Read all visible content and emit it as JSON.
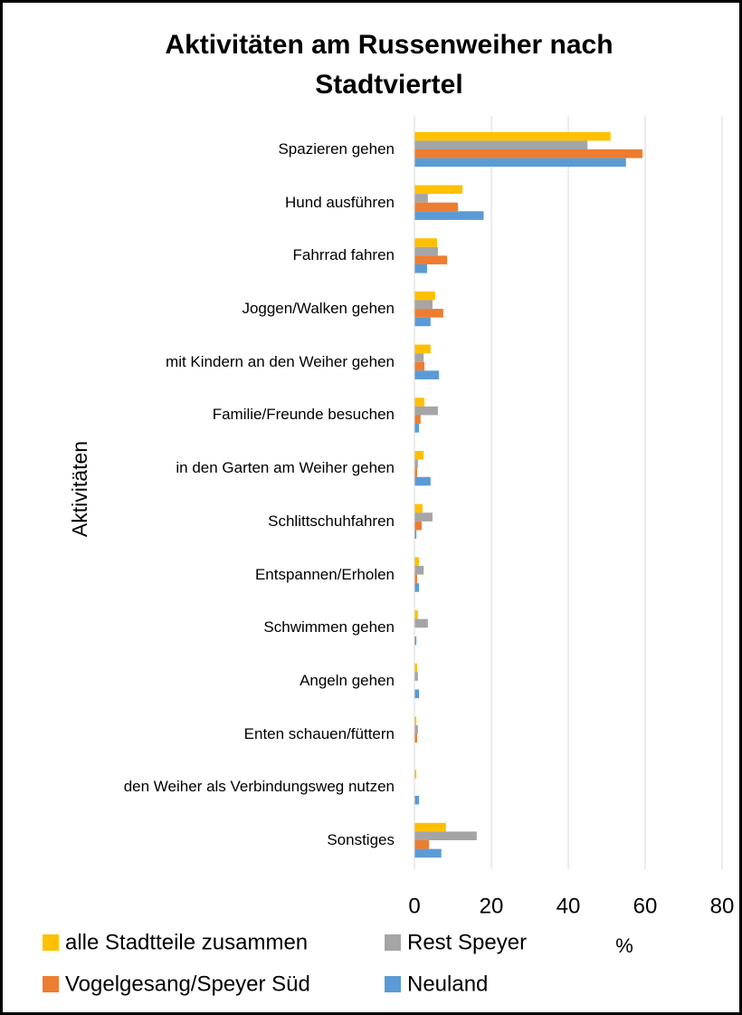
{
  "chart_data": {
    "type": "bar",
    "orientation": "horizontal",
    "title": "Aktivitäten am Russenweiher nach Stadtviertel",
    "y_label": "Aktivitäten",
    "x_label": "%",
    "categories": [
      "Spazieren gehen",
      "Hund ausführen",
      "Fahrrad fahren",
      "Joggen/Walken gehen",
      "mit Kindern an den Weiher gehen",
      "Familie/Freunde besuchen",
      "in den Garten am Weiher gehen",
      "Schlittschuhfahren",
      "Entspannen/Erholen",
      "Schwimmen gehen",
      "Angeln gehen",
      "Enten schauen/füttern",
      "den Weiher als Verbindungsweg nutzen",
      "Sonstiges"
    ],
    "series": [
      {
        "name": "alle Stadtteile zusammen",
        "color": "#ffc000",
        "values": [
          51,
          12.5,
          5.9,
          5.4,
          4.2,
          2.6,
          2.4,
          2.1,
          1.2,
          0.9,
          0.7,
          0.5,
          0.5,
          8.2
        ]
      },
      {
        "name": "Rest Speyer",
        "color": "#a5a5a5",
        "values": [
          45,
          3.5,
          6.1,
          4.7,
          2.4,
          6.1,
          0.9,
          4.7,
          2.4,
          3.5,
          0.9,
          0.9,
          0,
          16.2
        ]
      },
      {
        "name": "Vogelgesang/Speyer Süd",
        "color": "#ed7d31",
        "values": [
          59.3,
          11.3,
          8.5,
          7.5,
          2.6,
          1.6,
          0.7,
          1.9,
          0.7,
          0,
          0,
          0.7,
          0,
          3.8
        ]
      },
      {
        "name": "Neuland",
        "color": "#5b9bd5",
        "values": [
          55,
          18,
          3.3,
          4.2,
          6.4,
          1.2,
          4.2,
          0.5,
          1.2,
          0.5,
          1.2,
          0,
          1.2,
          7
        ]
      }
    ],
    "xlim": [
      0,
      80
    ],
    "xticks": [
      0,
      20,
      40,
      60,
      80
    ],
    "grid": true
  }
}
